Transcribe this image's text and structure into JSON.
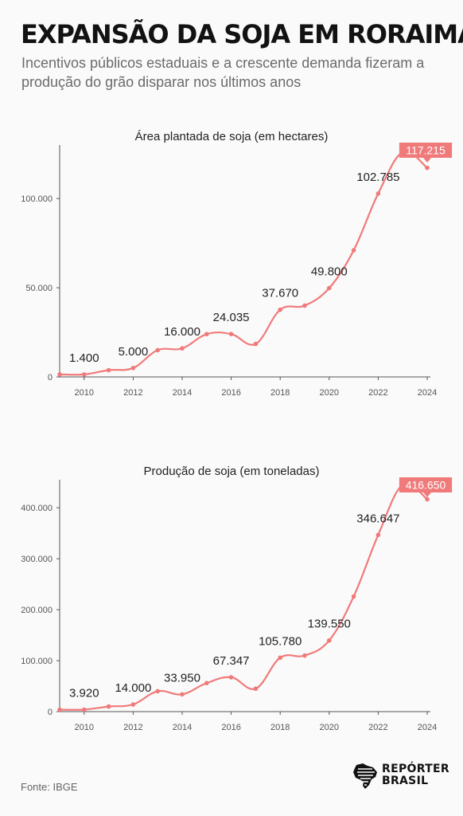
{
  "header": {
    "title": "EXPANSÃO DA SOJA EM RORAIMA",
    "subtitle": "Incentivos públicos estaduais e a crescente demanda fizeram a produção do grão disparar nos últimos anos"
  },
  "footer": {
    "source": "Fonte: IBGE",
    "logo_line1": "REPÓRTER",
    "logo_line2": "BRASIL",
    "logo_icon": "brazil-map-icon"
  },
  "colors": {
    "line": "#f07a7a",
    "highlight": "#f07a7a",
    "axis": "#555555",
    "text": "#222222"
  },
  "chart_data": [
    {
      "type": "line",
      "title": "Área plantada de soja (em hectares)",
      "x": [
        2009,
        2010,
        2011,
        2012,
        2013,
        2014,
        2015,
        2016,
        2017,
        2018,
        2019,
        2020,
        2021,
        2022,
        2023,
        2024
      ],
      "series": [
        {
          "values": [
            1400,
            1400,
            3800,
            5000,
            15000,
            16000,
            24000,
            24035,
            18500,
            37670,
            40000,
            49800,
            71000,
            102785,
            126000,
            117215
          ]
        }
      ],
      "data_labels": [
        {
          "x": 2010,
          "text": "1.400"
        },
        {
          "x": 2012,
          "text": "5.000"
        },
        {
          "x": 2014,
          "text": "16.000"
        },
        {
          "x": 2016,
          "text": "24.035"
        },
        {
          "x": 2018,
          "text": "37.670"
        },
        {
          "x": 2020,
          "text": "49.800"
        },
        {
          "x": 2022,
          "text": "102.785"
        },
        {
          "x": 2024,
          "text": "117.215",
          "highlight": true
        }
      ],
      "xticks": [
        2010,
        2012,
        2014,
        2016,
        2018,
        2020,
        2022,
        2024
      ],
      "yticks": [
        0,
        50000,
        100000
      ],
      "ytick_labels": [
        "0",
        "50.000",
        "100.000"
      ],
      "ylim": [
        0,
        130000
      ],
      "xlim": [
        2009,
        2024
      ],
      "grid": false
    },
    {
      "type": "line",
      "title": "Produção de soja (em toneladas)",
      "x": [
        2009,
        2010,
        2011,
        2012,
        2013,
        2014,
        2015,
        2016,
        2017,
        2018,
        2019,
        2020,
        2021,
        2022,
        2023,
        2024
      ],
      "series": [
        {
          "values": [
            3920,
            3920,
            10000,
            14000,
            40000,
            33950,
            56000,
            67347,
            45000,
            105780,
            110000,
            139550,
            226000,
            346647,
            445000,
            416650
          ]
        }
      ],
      "data_labels": [
        {
          "x": 2010,
          "text": "3.920"
        },
        {
          "x": 2012,
          "text": "14.000"
        },
        {
          "x": 2014,
          "text": "33.950"
        },
        {
          "x": 2016,
          "text": "67.347"
        },
        {
          "x": 2018,
          "text": "105.780"
        },
        {
          "x": 2020,
          "text": "139.550"
        },
        {
          "x": 2022,
          "text": "346.647"
        },
        {
          "x": 2024,
          "text": "416.650",
          "highlight": true
        }
      ],
      "xticks": [
        2010,
        2012,
        2014,
        2016,
        2018,
        2020,
        2022,
        2024
      ],
      "yticks": [
        0,
        100000,
        200000,
        300000,
        400000
      ],
      "ytick_labels": [
        "0",
        "100.000",
        "200.000",
        "300.000",
        "400.000"
      ],
      "ylim": [
        0,
        455000
      ],
      "xlim": [
        2009,
        2024
      ],
      "grid": false
    }
  ]
}
